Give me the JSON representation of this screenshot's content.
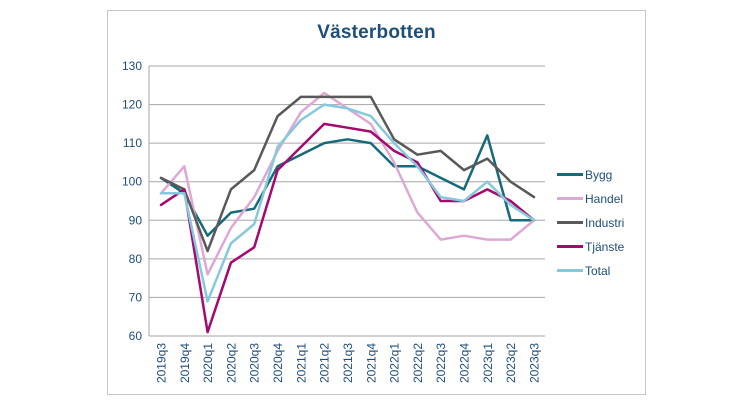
{
  "page": {
    "background": "#ffffff"
  },
  "chart_frame": {
    "border_color": "#c6c6c6",
    "background": "#ffffff"
  },
  "chart_data": {
    "type": "line",
    "title": "Västerbotten",
    "title_color": "#1F4E79",
    "categories": [
      "2019q3",
      "2019q4",
      "2020q1",
      "2020q2",
      "2020q3",
      "2020q4",
      "2021q1",
      "2021q2",
      "2021q3",
      "2021q4",
      "2022q1",
      "2022q2",
      "2022q3",
      "2022q4",
      "2023q1",
      "2023q2",
      "2023q3"
    ],
    "series": [
      {
        "name": "Bygg",
        "color": "#166a7a",
        "values": [
          101,
          97,
          86,
          92,
          93,
          104,
          107,
          110,
          111,
          110,
          104,
          104,
          101,
          98,
          112,
          90,
          90
        ]
      },
      {
        "name": "Handel",
        "color": "#dda9d4",
        "values": [
          97,
          104,
          76,
          88,
          96,
          108,
          118,
          123,
          119,
          115,
          105,
          92,
          85,
          86,
          85,
          85,
          90
        ]
      },
      {
        "name": "Industri",
        "color": "#595959",
        "values": [
          101,
          98,
          82,
          98,
          103,
          117,
          122,
          122,
          122,
          122,
          111,
          107,
          108,
          103,
          106,
          100,
          96
        ]
      },
      {
        "name": "Tjänste",
        "color": "#a5086e",
        "values": [
          94,
          98,
          61,
          79,
          83,
          103,
          109,
          115,
          114,
          113,
          108,
          105,
          95,
          95,
          98,
          95,
          90
        ]
      },
      {
        "name": "Total",
        "color": "#86c8dc",
        "values": [
          97,
          97,
          69,
          84,
          89,
          109,
          116,
          120,
          119,
          117,
          110,
          104,
          96,
          95,
          100,
          94,
          90
        ]
      }
    ],
    "ylim": [
      60,
      130
    ],
    "yticks": [
      60,
      70,
      80,
      90,
      100,
      110,
      120,
      130
    ],
    "grid": true,
    "grid_color": "#A6A6A6",
    "axis_color": "#A6A6A6",
    "tick_label_color": "#1F4E79",
    "legend_position": "right",
    "legend_text_color": "#1F4E79",
    "line_width": 2.5
  }
}
